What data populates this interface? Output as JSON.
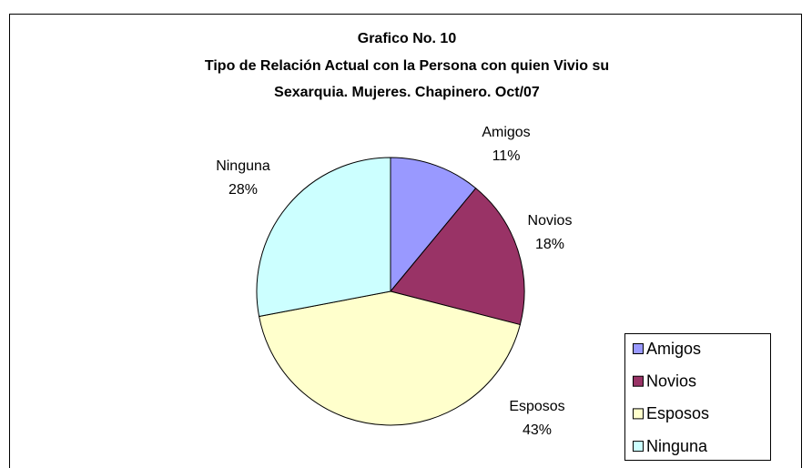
{
  "chart_data": {
    "type": "pie",
    "title": [
      "Grafico No. 10",
      "Tipo de Relación Actual con la Persona con quien Vivio su",
      "Sexarquia. Mujeres. Chapinero. Oct/07"
    ],
    "categories": [
      "Amigos",
      "Novios",
      "Esposos",
      "Ninguna"
    ],
    "values": [
      11,
      18,
      43,
      28
    ],
    "value_labels": [
      "11%",
      "18%",
      "43%",
      "28%"
    ],
    "colors": [
      "#9999ff",
      "#993366",
      "#ffffcc",
      "#ccffff"
    ],
    "legend": "right"
  }
}
